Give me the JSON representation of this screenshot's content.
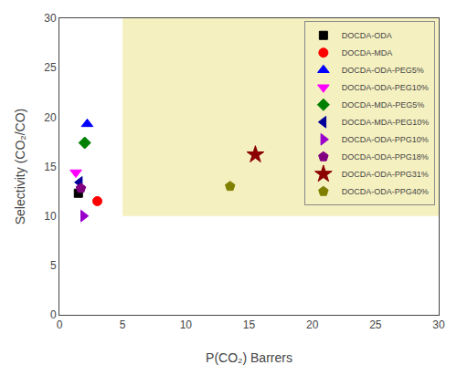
{
  "chart_data": {
    "type": "scatter",
    "xlabel": "P(CO₂) Barrers",
    "ylabel": "Selectivity (CO₂/CO)",
    "series": [
      {
        "name": "DOCDA-ODA",
        "color": "#000000",
        "marker": "square",
        "x": [
          1.5
        ],
        "values": [
          12.3
        ]
      },
      {
        "name": "DOCDA-MDA",
        "color": "#ff0000",
        "marker": "circle",
        "x": [
          3.0
        ],
        "values": [
          11.5
        ]
      },
      {
        "name": "DOCDA-ODA-PEG5%",
        "color": "#0000ff",
        "marker": "triangle-up",
        "x": [
          2.2
        ],
        "values": [
          19.3
        ]
      },
      {
        "name": "DOCDA-ODA-PEG10%",
        "color": "#ff00ff",
        "marker": "triangle-down",
        "x": [
          1.3
        ],
        "values": [
          14.4
        ]
      },
      {
        "name": "DOCDA-MDA-PEG5%",
        "color": "#008000",
        "marker": "diamond",
        "x": [
          2.0
        ],
        "values": [
          17.4
        ]
      },
      {
        "name": "DOCDA-MDA-PEG10%",
        "color": "#000099",
        "marker": "triangle-left",
        "x": [
          1.6
        ],
        "values": [
          13.4
        ]
      },
      {
        "name": "DOCDA-ODA-PPG10%",
        "color": "#9900cc",
        "marker": "triangle-right",
        "x": [
          1.9
        ],
        "values": [
          10.0
        ]
      },
      {
        "name": "DOCDA-ODA-PPG18%",
        "color": "#800080",
        "marker": "pentagon",
        "x": [
          1.7
        ],
        "values": [
          12.8
        ]
      },
      {
        "name": "DOCDA-ODA-PPG31%",
        "color": "#8b0000",
        "marker": "star",
        "x": [
          15.5
        ],
        "values": [
          16.2
        ]
      },
      {
        "name": "DOCDA-ODA-PPG40%",
        "color": "#808000",
        "marker": "pentagon",
        "x": [
          13.5
        ],
        "values": [
          13.0
        ]
      }
    ],
    "shaded_region": {
      "x": [
        5,
        30
      ],
      "y": [
        10,
        30
      ],
      "color": "#f5f0c0"
    },
    "xlim": [
      0,
      30
    ],
    "ylim": [
      0,
      30
    ],
    "xticks": [
      0,
      5,
      10,
      15,
      20,
      25,
      30
    ],
    "yticks": [
      0,
      5,
      10,
      15,
      20,
      25,
      30
    ],
    "grid": false,
    "legend": "upper right"
  }
}
